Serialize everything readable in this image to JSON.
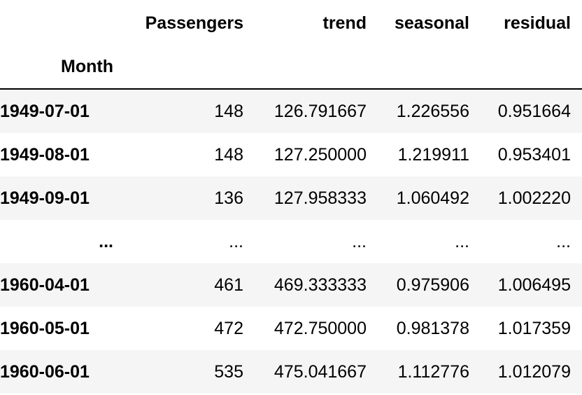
{
  "table": {
    "columns": [
      "Passengers",
      "trend",
      "seasonal",
      "residual"
    ],
    "index_name": "Month",
    "rows": [
      {
        "index": "1949-07-01",
        "values": [
          "148",
          "126.791667",
          "1.226556",
          "0.951664"
        ]
      },
      {
        "index": "1949-08-01",
        "values": [
          "148",
          "127.250000",
          "1.219911",
          "0.953401"
        ]
      },
      {
        "index": "1949-09-01",
        "values": [
          "136",
          "127.958333",
          "1.060492",
          "1.002220"
        ]
      },
      {
        "index": "...",
        "values": [
          "...",
          "...",
          "...",
          "..."
        ]
      },
      {
        "index": "1960-04-01",
        "values": [
          "461",
          "469.333333",
          "0.975906",
          "1.006495"
        ]
      },
      {
        "index": "1960-05-01",
        "values": [
          "472",
          "472.750000",
          "0.981378",
          "1.017359"
        ]
      },
      {
        "index": "1960-06-01",
        "values": [
          "535",
          "475.041667",
          "1.112776",
          "1.012079"
        ]
      }
    ]
  }
}
